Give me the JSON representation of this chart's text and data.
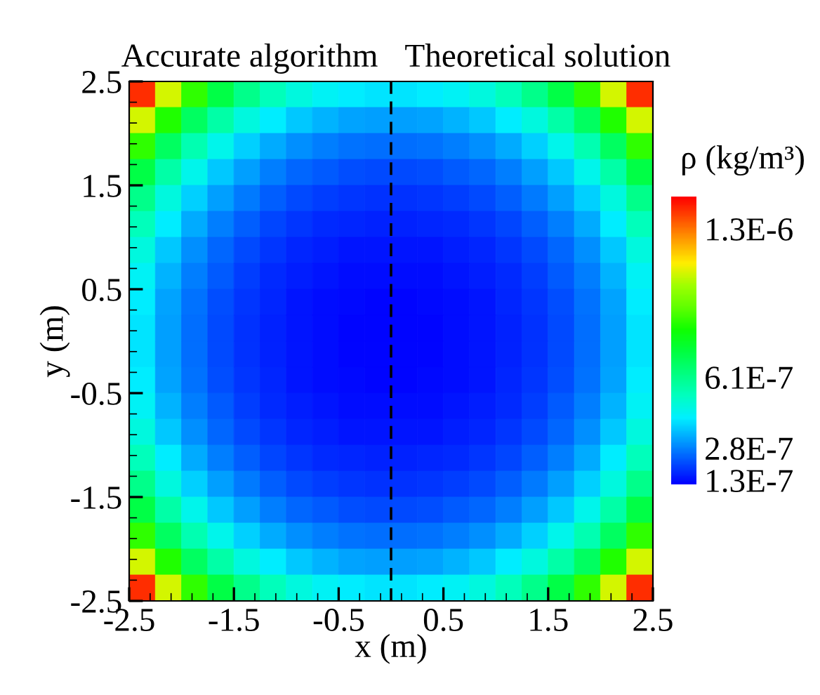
{
  "chart_data": {
    "type": "heatmap",
    "xlabel": "x (m)",
    "ylabel": "y (m)",
    "clabel": "ρ (kg/m³)",
    "annotations": [
      "Accurate algorithm",
      "Theoretical solution"
    ],
    "xlim": [
      -2.5,
      2.5
    ],
    "ylim": [
      -2.5,
      2.5
    ],
    "xticks": [
      -2.5,
      -1.5,
      -0.5,
      0.5,
      1.5,
      2.5
    ],
    "yticks": [
      -2.5,
      -1.5,
      -0.5,
      0.5,
      1.5,
      2.5
    ],
    "clim": [
      1.11e-07,
      1.45e-06
    ],
    "cticks": [
      {
        "value": 1.3e-07,
        "label": "1.3E-7"
      },
      {
        "value": 2.8e-07,
        "label": "2.8E-7"
      },
      {
        "value": 6.1e-07,
        "label": "6.1E-7"
      },
      {
        "value": 1.3e-06,
        "label": "1.3E-6"
      }
    ],
    "colors": [
      "#0000ff",
      "#0050ff",
      "#00a0ff",
      "#00f0ff",
      "#00ffc0",
      "#00ff80",
      "#00ff40",
      "#10ff00",
      "#60ff00",
      "#a0ff00",
      "#ffee00",
      "#ffa000",
      "#ff5000",
      "#ff0000"
    ],
    "ref_lines": [
      {
        "axis": "x",
        "value": 0,
        "color": "#000000",
        "line_style": "dashed"
      }
    ],
    "grid": false,
    "cells": [
      [
        1.39e-06,
        1.09e-06,
        8.73e-07,
        7.2e-07,
        6.1e-07,
        5.32e-07,
        4.77e-07,
        4.39e-07,
        4.15e-07,
        4.04e-07,
        4.04e-07,
        4.15e-07,
        4.39e-07,
        4.77e-07,
        5.32e-07,
        6.1e-07,
        7.2e-07,
        8.73e-07,
        1.09e-06,
        1.39e-06
      ],
      [
        1.09e-06,
        8.49e-07,
        6.81e-07,
        5.62e-07,
        4.77e-07,
        4.15e-07,
        3.72e-07,
        3.43e-07,
        3.24e-07,
        3.15e-07,
        3.15e-07,
        3.24e-07,
        3.43e-07,
        3.72e-07,
        4.15e-07,
        4.77e-07,
        5.62e-07,
        6.81e-07,
        8.49e-07,
        1.09e-06
      ],
      [
        8.73e-07,
        6.81e-07,
        5.47e-07,
        4.51e-07,
        3.82e-07,
        3.33e-07,
        2.99e-07,
        2.75e-07,
        2.6e-07,
        2.53e-07,
        2.53e-07,
        2.6e-07,
        2.75e-07,
        2.99e-07,
        3.33e-07,
        3.82e-07,
        4.51e-07,
        5.47e-07,
        6.81e-07,
        8.73e-07
      ],
      [
        7.2e-07,
        5.62e-07,
        4.51e-07,
        3.72e-07,
        3.15e-07,
        2.75e-07,
        2.46e-07,
        2.27e-07,
        2.15e-07,
        2.09e-07,
        2.09e-07,
        2.15e-07,
        2.27e-07,
        2.46e-07,
        2.75e-07,
        3.15e-07,
        3.72e-07,
        4.51e-07,
        5.62e-07,
        7.2e-07
      ],
      [
        6.1e-07,
        4.77e-07,
        3.82e-07,
        3.15e-07,
        2.68e-07,
        2.33e-07,
        2.09e-07,
        1.92e-07,
        1.82e-07,
        1.77e-07,
        1.77e-07,
        1.82e-07,
        1.92e-07,
        2.09e-07,
        2.33e-07,
        2.68e-07,
        3.15e-07,
        3.82e-07,
        4.77e-07,
        6.1e-07
      ],
      [
        5.32e-07,
        4.15e-07,
        3.33e-07,
        2.75e-07,
        2.33e-07,
        2.03e-07,
        1.82e-07,
        1.68e-07,
        1.59e-07,
        1.54e-07,
        1.54e-07,
        1.59e-07,
        1.68e-07,
        1.82e-07,
        2.03e-07,
        2.33e-07,
        2.75e-07,
        3.33e-07,
        4.15e-07,
        5.32e-07
      ],
      [
        4.77e-07,
        3.72e-07,
        2.99e-07,
        2.46e-07,
        2.09e-07,
        1.82e-07,
        1.63e-07,
        1.5e-07,
        1.42e-07,
        1.38e-07,
        1.38e-07,
        1.42e-07,
        1.5e-07,
        1.63e-07,
        1.82e-07,
        2.09e-07,
        2.46e-07,
        2.99e-07,
        3.72e-07,
        4.77e-07
      ],
      [
        4.39e-07,
        3.43e-07,
        2.75e-07,
        2.27e-07,
        1.92e-07,
        1.68e-07,
        1.5e-07,
        1.38e-07,
        1.31e-07,
        1.27e-07,
        1.27e-07,
        1.31e-07,
        1.38e-07,
        1.5e-07,
        1.68e-07,
        1.92e-07,
        2.27e-07,
        2.75e-07,
        3.43e-07,
        4.39e-07
      ],
      [
        4.15e-07,
        3.24e-07,
        2.6e-07,
        2.15e-07,
        1.82e-07,
        1.59e-07,
        1.42e-07,
        1.31e-07,
        1.24e-07,
        1.21e-07,
        1.21e-07,
        1.24e-07,
        1.31e-07,
        1.42e-07,
        1.59e-07,
        1.82e-07,
        2.15e-07,
        2.6e-07,
        3.24e-07,
        4.15e-07
      ],
      [
        4.04e-07,
        3.15e-07,
        2.53e-07,
        2.09e-07,
        1.77e-07,
        1.54e-07,
        1.38e-07,
        1.27e-07,
        1.21e-07,
        1.17e-07,
        1.17e-07,
        1.21e-07,
        1.27e-07,
        1.38e-07,
        1.54e-07,
        1.77e-07,
        2.09e-07,
        2.53e-07,
        3.15e-07,
        4.04e-07
      ],
      [
        4.04e-07,
        3.15e-07,
        2.53e-07,
        2.09e-07,
        1.77e-07,
        1.54e-07,
        1.38e-07,
        1.27e-07,
        1.21e-07,
        1.17e-07,
        1.17e-07,
        1.21e-07,
        1.27e-07,
        1.38e-07,
        1.54e-07,
        1.77e-07,
        2.09e-07,
        2.53e-07,
        3.15e-07,
        4.04e-07
      ],
      [
        4.15e-07,
        3.24e-07,
        2.6e-07,
        2.15e-07,
        1.82e-07,
        1.59e-07,
        1.42e-07,
        1.31e-07,
        1.24e-07,
        1.21e-07,
        1.21e-07,
        1.24e-07,
        1.31e-07,
        1.42e-07,
        1.59e-07,
        1.82e-07,
        2.15e-07,
        2.6e-07,
        3.24e-07,
        4.15e-07
      ],
      [
        4.39e-07,
        3.43e-07,
        2.75e-07,
        2.27e-07,
        1.92e-07,
        1.68e-07,
        1.5e-07,
        1.38e-07,
        1.31e-07,
        1.27e-07,
        1.27e-07,
        1.31e-07,
        1.38e-07,
        1.5e-07,
        1.68e-07,
        1.92e-07,
        2.27e-07,
        2.75e-07,
        3.43e-07,
        4.39e-07
      ],
      [
        4.77e-07,
        3.72e-07,
        2.99e-07,
        2.46e-07,
        2.09e-07,
        1.82e-07,
        1.63e-07,
        1.5e-07,
        1.42e-07,
        1.38e-07,
        1.38e-07,
        1.42e-07,
        1.5e-07,
        1.63e-07,
        1.82e-07,
        2.09e-07,
        2.46e-07,
        2.99e-07,
        3.72e-07,
        4.77e-07
      ],
      [
        5.32e-07,
        4.15e-07,
        3.33e-07,
        2.75e-07,
        2.33e-07,
        2.03e-07,
        1.82e-07,
        1.68e-07,
        1.59e-07,
        1.54e-07,
        1.54e-07,
        1.59e-07,
        1.68e-07,
        1.82e-07,
        2.03e-07,
        2.33e-07,
        2.75e-07,
        3.33e-07,
        4.15e-07,
        5.32e-07
      ],
      [
        6.1e-07,
        4.77e-07,
        3.82e-07,
        3.15e-07,
        2.68e-07,
        2.33e-07,
        2.09e-07,
        1.92e-07,
        1.82e-07,
        1.77e-07,
        1.77e-07,
        1.82e-07,
        1.92e-07,
        2.09e-07,
        2.33e-07,
        2.68e-07,
        3.15e-07,
        3.82e-07,
        4.77e-07,
        6.1e-07
      ],
      [
        7.2e-07,
        5.62e-07,
        4.51e-07,
        3.72e-07,
        3.15e-07,
        2.75e-07,
        2.46e-07,
        2.27e-07,
        2.15e-07,
        2.09e-07,
        2.09e-07,
        2.15e-07,
        2.27e-07,
        2.46e-07,
        2.75e-07,
        3.15e-07,
        3.72e-07,
        4.51e-07,
        5.62e-07,
        7.2e-07
      ],
      [
        8.73e-07,
        6.81e-07,
        5.47e-07,
        4.51e-07,
        3.82e-07,
        3.33e-07,
        2.99e-07,
        2.75e-07,
        2.6e-07,
        2.53e-07,
        2.53e-07,
        2.6e-07,
        2.75e-07,
        2.99e-07,
        3.33e-07,
        3.82e-07,
        4.51e-07,
        5.47e-07,
        6.81e-07,
        8.73e-07
      ],
      [
        1.09e-06,
        8.49e-07,
        6.81e-07,
        5.62e-07,
        4.77e-07,
        4.15e-07,
        3.72e-07,
        3.43e-07,
        3.24e-07,
        3.15e-07,
        3.15e-07,
        3.24e-07,
        3.43e-07,
        3.72e-07,
        4.15e-07,
        4.77e-07,
        5.62e-07,
        6.81e-07,
        8.49e-07,
        1.09e-06
      ],
      [
        1.39e-06,
        1.09e-06,
        8.73e-07,
        7.2e-07,
        6.1e-07,
        5.32e-07,
        4.77e-07,
        4.39e-07,
        4.15e-07,
        4.04e-07,
        4.04e-07,
        4.15e-07,
        4.39e-07,
        4.77e-07,
        5.32e-07,
        6.1e-07,
        7.2e-07,
        8.73e-07,
        1.09e-06,
        1.39e-06
      ]
    ]
  }
}
